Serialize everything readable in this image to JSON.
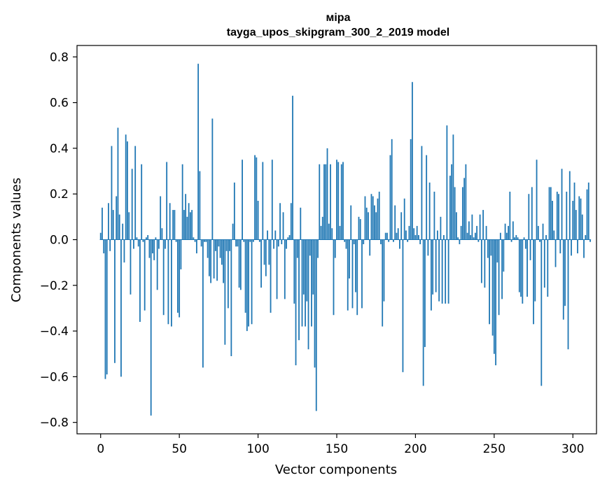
{
  "chart_data": {
    "type": "bar",
    "title_line1": "міра",
    "title_line2": "tayga_upos_skipgram_300_2_2019 model",
    "xlabel": "Vector components",
    "ylabel": "Components values",
    "xlim": [
      -15,
      315
    ],
    "ylim": [
      -0.85,
      0.85
    ],
    "xticks": [
      0,
      50,
      100,
      150,
      200,
      250,
      300
    ],
    "xtick_labels": [
      "0",
      "50",
      "100",
      "150",
      "200",
      "250",
      "300"
    ],
    "yticks": [
      -0.8,
      -0.6,
      -0.4,
      -0.2,
      0.0,
      0.2,
      0.4,
      0.6,
      0.8
    ],
    "ytick_labels": [
      "−0.8",
      "−0.6",
      "−0.4",
      "−0.2",
      "0.0",
      "0.2",
      "0.4",
      "0.6",
      "0.8"
    ],
    "bar_color": "#1f77b4",
    "values": [
      0.03,
      0.14,
      -0.06,
      -0.61,
      -0.59,
      0.16,
      -0.05,
      0.41,
      0.13,
      -0.54,
      0.19,
      0.49,
      0.11,
      -0.6,
      0.07,
      -0.1,
      0.46,
      0.43,
      0.12,
      -0.24,
      0.31,
      -0.04,
      0.41,
      0.01,
      -0.03,
      -0.36,
      0.33,
      -0.01,
      -0.31,
      0.01,
      0.02,
      -0.08,
      -0.77,
      -0.06,
      -0.09,
      0.01,
      -0.22,
      -0.04,
      0.19,
      0.05,
      -0.33,
      -0.04,
      0.34,
      -0.37,
      0.16,
      -0.38,
      0.13,
      0.13,
      -0.01,
      -0.32,
      -0.34,
      -0.13,
      0.33,
      0.13,
      0.2,
      0.1,
      0.16,
      0.12,
      0.13,
      0.01,
      -0.01,
      -0.06,
      0.77,
      0.3,
      -0.03,
      -0.56,
      -0.01,
      -0.01,
      -0.08,
      -0.16,
      -0.19,
      0.53,
      -0.17,
      -0.05,
      -0.18,
      -0.03,
      -0.08,
      -0.11,
      -0.19,
      -0.46,
      -0.05,
      -0.3,
      -0.05,
      -0.51,
      0.07,
      0.25,
      -0.03,
      -0.03,
      -0.21,
      -0.22,
      0.35,
      -0.01,
      -0.32,
      -0.4,
      -0.38,
      -0.01,
      -0.37,
      -0.01,
      0.37,
      0.36,
      0.17,
      -0.01,
      -0.21,
      0.34,
      -0.11,
      -0.16,
      0.04,
      -0.11,
      -0.32,
      0.35,
      -0.04,
      0.04,
      -0.26,
      -0.03,
      0.16,
      -0.02,
      0.12,
      -0.26,
      -0.04,
      0.01,
      0.02,
      0.16,
      0.63,
      -0.28,
      -0.55,
      -0.08,
      -0.44,
      0.14,
      -0.38,
      -0.24,
      -0.38,
      -0.27,
      -0.48,
      -0.07,
      -0.38,
      -0.24,
      -0.56,
      -0.75,
      -0.08,
      0.33,
      0.06,
      0.1,
      0.33,
      0.33,
      0.4,
      0.07,
      0.33,
      0.05,
      -0.33,
      -0.08,
      0.35,
      0.34,
      0.06,
      0.33,
      0.34,
      -0.01,
      -0.04,
      -0.31,
      -0.17,
      0.15,
      -0.3,
      -0.02,
      -0.23,
      -0.33,
      0.1,
      0.09,
      -0.3,
      -0.02,
      0.19,
      0.14,
      0.12,
      -0.07,
      0.2,
      0.19,
      0.15,
      0.12,
      0.18,
      0.21,
      -0.02,
      -0.38,
      -0.27,
      0.03,
      0.03,
      -0.01,
      0.37,
      0.44,
      -0.01,
      0.15,
      0.03,
      0.05,
      -0.04,
      0.12,
      -0.58,
      0.18,
      0.04,
      -0.01,
      0.06,
      0.44,
      0.69,
      0.05,
      0.02,
      0.06,
      0.02,
      -0.02,
      0.41,
      -0.64,
      -0.47,
      0.37,
      -0.07,
      0.25,
      -0.31,
      -0.24,
      0.21,
      -0.23,
      0.04,
      -0.27,
      0.1,
      -0.28,
      0.02,
      -0.28,
      0.5,
      -0.28,
      0.28,
      0.33,
      0.46,
      0.23,
      0.12,
      0.01,
      -0.02,
      0.06,
      0.23,
      0.27,
      0.33,
      0.03,
      0.08,
      0.02,
      0.11,
      0.01,
      0.03,
      0.06,
      -0.01,
      0.11,
      -0.19,
      0.13,
      -0.21,
      0.06,
      -0.08,
      -0.37,
      -0.07,
      -0.42,
      -0.5,
      -0.55,
      -0.1,
      -0.33,
      0.03,
      -0.26,
      -0.14,
      0.07,
      0.03,
      0.06,
      0.21,
      -0.01,
      0.08,
      0.01,
      0.02,
      0.01,
      -0.23,
      -0.25,
      -0.28,
      0.01,
      -0.04,
      -0.25,
      0.2,
      -0.09,
      0.23,
      -0.37,
      -0.27,
      0.35,
      0.06,
      -0.01,
      -0.64,
      0.07,
      -0.21,
      0.02,
      -0.25,
      0.23,
      0.23,
      0.17,
      0.04,
      -0.12,
      0.21,
      0.2,
      -0.06,
      0.31,
      -0.35,
      -0.29,
      0.21,
      -0.48,
      0.3,
      -0.07,
      0.17,
      0.25,
      0.13,
      -0.06,
      0.19,
      0.18,
      0.11,
      -0.08,
      0.02,
      0.22,
      0.25,
      -0.01
    ]
  }
}
